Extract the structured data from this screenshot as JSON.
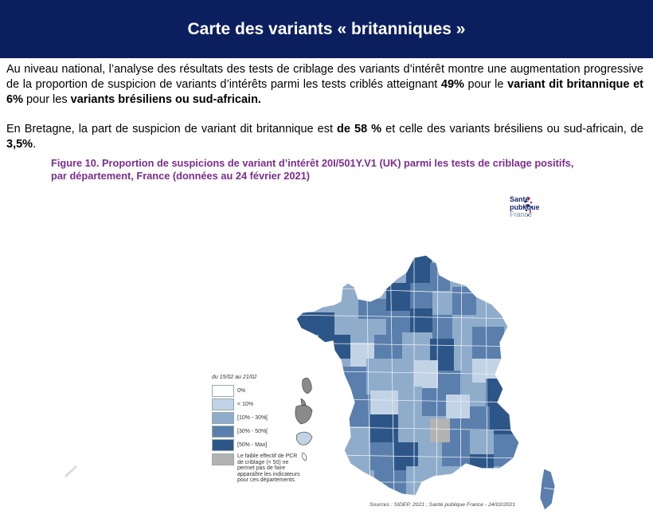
{
  "header": {
    "title": "Carte des variants « britanniques »"
  },
  "text": {
    "p1_a": "Au niveau national, l’analyse des résultats des tests de criblage des variants d’intérêt montre une augmentation progressive de la proportion de suspicion de variants d’intérêts parmi les tests criblés atteignant ",
    "p1_b": "49%",
    "p1_c": " pour le ",
    "p1_d": "variant dit britannique et 6%",
    "p1_e": " pour les ",
    "p1_f": "variants brésiliens ou sud-africain.",
    "p2_a": "En Bretagne, la part de suspicion de variant dit britannique est ",
    "p2_b": "de 58 %",
    "p2_c": " et celle des variants brésiliens ou sud-africain, de ",
    "p2_d": "3,5%",
    "p2_e": "."
  },
  "figure": {
    "title_line1": "Figure 10. Proportion de suspicions de variant d’intérêt 20I/501Y.V1 (UK) parmi les tests de criblage positifs,",
    "title_line2": "par département, France (données au 24 février 2021)"
  },
  "logo": {
    "line1": "Santé",
    "line2": "publique",
    "line3": "France"
  },
  "legend": {
    "title": "du 15/02 au 21/02",
    "items": [
      {
        "label": "0%",
        "color": "#ffffff"
      },
      {
        "label": "< 10%",
        "color": "#c3d3e6"
      },
      {
        "label": "[10% - 30%[",
        "color": "#8faccb"
      },
      {
        "label": "[30% - 50%[",
        "color": "#5a7fad"
      },
      {
        "label": "[50% - Max]",
        "color": "#2d5688"
      }
    ],
    "nodata": {
      "color": "#b3b3b3",
      "lines": [
        "Le faible effectif de PCR",
        "de criblage (< 50) ne",
        "permet pas de faire",
        "apparaître les indicateurs",
        "pour ces départements."
      ]
    }
  },
  "source": "Sources : SIDEP, 2021 ; Santé publique France - 24/02/2021",
  "colors": {
    "header_bg": "#0b1f5e",
    "figure_title": "#7b2d8e"
  }
}
